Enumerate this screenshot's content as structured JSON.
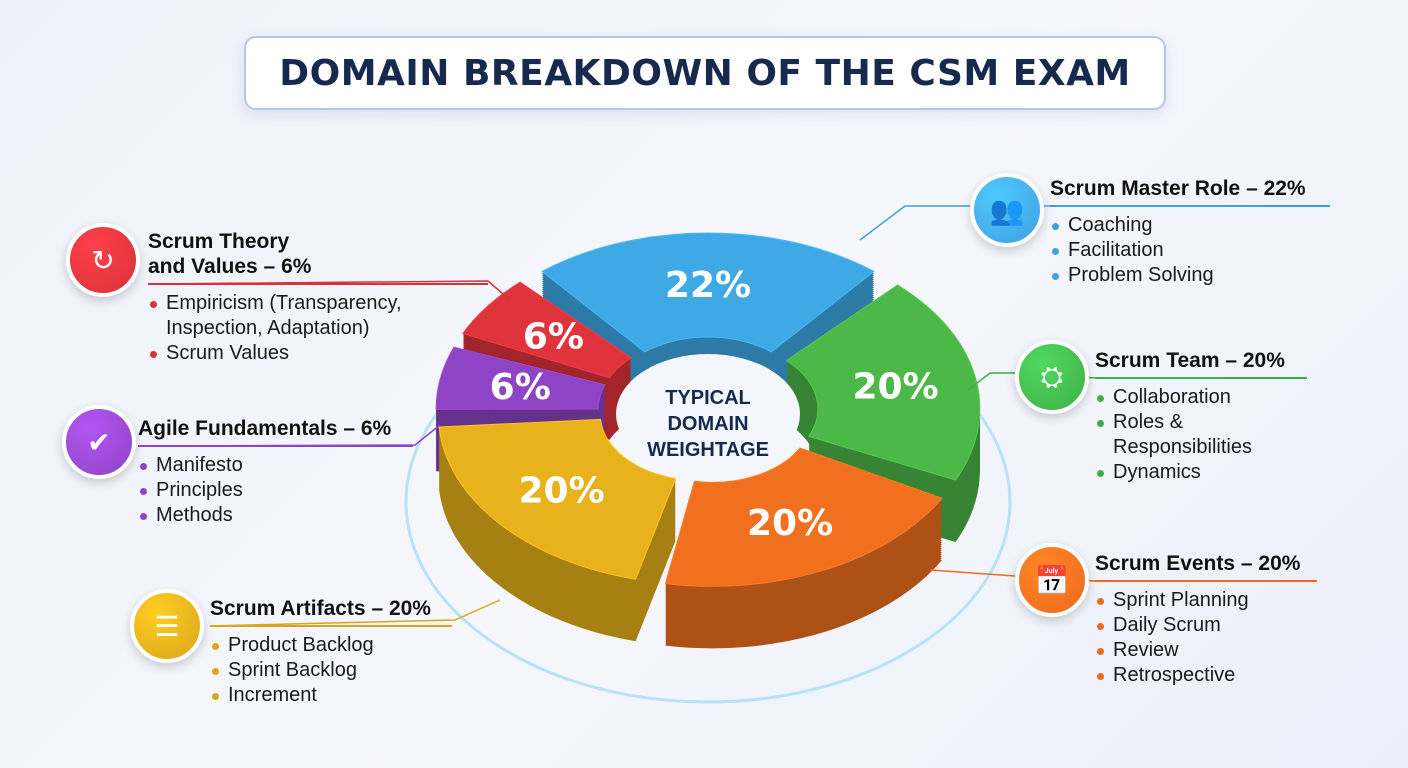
{
  "title": "DOMAIN BREAKDOWN OF THE CSM EXAM",
  "chart_data": {
    "type": "pie",
    "variant": "3d-donut",
    "center_label": [
      "TYPICAL",
      "DOMAIN",
      "WEIGHTAGE"
    ],
    "categories": [
      "Scrum Master Role",
      "Scrum Team",
      "Scrum Events",
      "Scrum Artifacts",
      "Agile Fundamentals",
      "Scrum Theory and Values"
    ],
    "values": [
      22,
      20,
      20,
      20,
      6,
      6
    ],
    "labels": [
      "22%",
      "20%",
      "20%",
      "20%",
      "6%",
      "6%"
    ],
    "colors": [
      "#3fa9e6",
      "#4cb848",
      "#f07020",
      "#e8b21c",
      "#8e44c4",
      "#e0343c"
    ]
  },
  "categories": [
    {
      "heading": "Scrum Master Role – 22%",
      "icon": "people-group-icon",
      "color": "#3fa0e0",
      "items": [
        "Coaching",
        "Facilitation",
        "Problem Solving"
      ]
    },
    {
      "heading": "Scrum Team – 20%",
      "icon": "team-network-icon",
      "color": "#3fae4a",
      "items": [
        "Collaboration",
        "Roles & Responsibilities",
        "Dynamics"
      ]
    },
    {
      "heading": "Scrum Events – 20%",
      "icon": "calendar-clock-icon",
      "color": "#ee6a1e",
      "items": [
        "Sprint Planning",
        "Daily Scrum",
        "Review",
        "Retrospective"
      ]
    },
    {
      "heading": "Scrum Artifacts – 20%",
      "icon": "backlog-list-icon",
      "color": "#d9a51a",
      "items": [
        "Product Backlog",
        "Sprint Backlog",
        "Increment"
      ]
    },
    {
      "heading": "Agile Fundamentals – 6%",
      "icon": "agile-cycle-check-icon",
      "color": "#8e44c4",
      "items": [
        "Manifesto",
        "Principles",
        "Methods"
      ]
    },
    {
      "heading": "Scrum Theory\nand Values – 6%",
      "icon": "scrum-cycle-icon",
      "color": "#d8323a",
      "items": [
        "Empiricism (Transparency, Inspection, Adaptation)",
        "Scrum Values"
      ]
    }
  ]
}
